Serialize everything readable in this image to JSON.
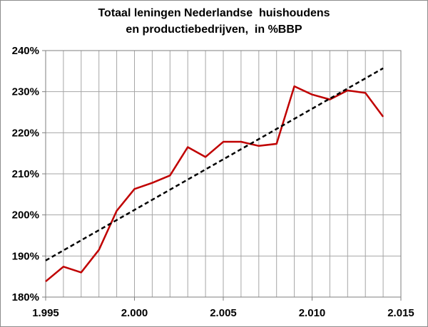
{
  "chart_data": {
    "type": "line",
    "title_lines": [
      "Totaal leningen Nederlandse  huishoudens",
      "en productiebedrijven,  in %BBP"
    ],
    "xlabel": "",
    "ylabel": "",
    "xlim": [
      1995,
      2015
    ],
    "ylim": [
      180,
      240
    ],
    "x_ticks": [
      1995,
      2000,
      2005,
      2010,
      2015
    ],
    "x_tick_labels": [
      "1.995",
      "2.000",
      "2.005",
      "2.010",
      "2.015"
    ],
    "y_ticks": [
      180,
      190,
      200,
      210,
      220,
      230,
      240
    ],
    "y_tick_labels": [
      "180%",
      "190%",
      "200%",
      "210%",
      "220%",
      "230%",
      "240%"
    ],
    "grid": {
      "vertical_every": 1,
      "horizontal_every": 10
    },
    "legend": "none",
    "series": [
      {
        "style": "solid",
        "color": "#c00000",
        "x": [
          1995,
          1996,
          1997,
          1998,
          1999,
          2000,
          2001,
          2002,
          2003,
          2004,
          2005,
          2006,
          2007,
          2008,
          2009,
          2010,
          2011,
          2012,
          2013,
          2014
        ],
        "values": [
          183.8,
          187.4,
          186.0,
          191.5,
          201.0,
          206.3,
          207.8,
          209.6,
          216.5,
          214.1,
          217.8,
          217.8,
          216.8,
          217.3,
          231.3,
          229.3,
          228.1,
          230.3,
          229.7,
          223.9
        ]
      },
      {
        "style": "dashed",
        "color": "#000000",
        "x": [
          1995,
          2014
        ],
        "values": [
          188.9,
          235.7
        ]
      }
    ]
  }
}
